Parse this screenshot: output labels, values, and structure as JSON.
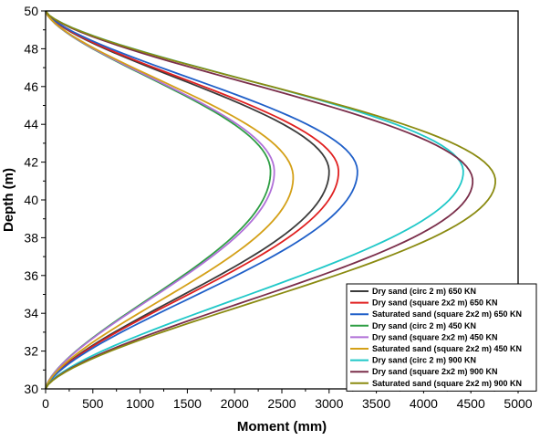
{
  "chart_data": {
    "type": "line",
    "xlabel": "Moment (mm)",
    "ylabel": "Depth (m)",
    "xlim": [
      0,
      5000
    ],
    "ylim": [
      30,
      50
    ],
    "xticks": [
      0,
      500,
      1000,
      1500,
      2000,
      2500,
      3000,
      3500,
      4000,
      4500,
      5000
    ],
    "yticks": [
      30,
      32,
      34,
      36,
      38,
      40,
      42,
      44,
      46,
      48,
      50
    ],
    "grid": false,
    "legend_position": "bottom-right",
    "series": [
      {
        "name": "Dry sand (circ 2 m) 650 KN",
        "color": "#3b3b3b",
        "peak_x": 3000,
        "peak_y": 41.5,
        "top_x": 0,
        "bottom_x": 0
      },
      {
        "name": "Dry sand (square 2x2 m) 650 KN",
        "color": "#e02020",
        "peak_x": 3100,
        "peak_y": 41.5,
        "top_x": 0,
        "bottom_x": 0
      },
      {
        "name": "Saturated sand (square 2x2 m) 650 KN",
        "color": "#1f5fc8",
        "peak_x": 3300,
        "peak_y": 41.5,
        "top_x": 0,
        "bottom_x": 0
      },
      {
        "name": "Dry sand (circ 2 m) 450 KN",
        "color": "#2e9e44",
        "peak_x": 2380,
        "peak_y": 41.5,
        "top_x": 0,
        "bottom_x": 0
      },
      {
        "name": "Dry sand (square 2x2 m) 450 KN",
        "color": "#b070d8",
        "peak_x": 2420,
        "peak_y": 41.5,
        "top_x": 0,
        "bottom_x": 0
      },
      {
        "name": "Saturated sand (square 2x2 m) 450 KN",
        "color": "#d4a017",
        "peak_x": 2620,
        "peak_y": 41.2,
        "top_x": 0,
        "bottom_x": 0
      },
      {
        "name": "Dry sand (circ 2 m) 900 KN",
        "color": "#1fc8c8",
        "peak_x": 4420,
        "peak_y": 41.5,
        "top_x": 0,
        "bottom_x": 0
      },
      {
        "name": "Dry sand (square 2x2 m) 900 KN",
        "color": "#7a2e4a",
        "peak_x": 4520,
        "peak_y": 41.0,
        "top_x": 0,
        "bottom_x": 0
      },
      {
        "name": "Saturated sand (square 2x2 m) 900 KN",
        "color": "#8a8a10",
        "peak_x": 4760,
        "peak_y": 41.0,
        "top_x": 0,
        "bottom_x": 0
      }
    ]
  }
}
